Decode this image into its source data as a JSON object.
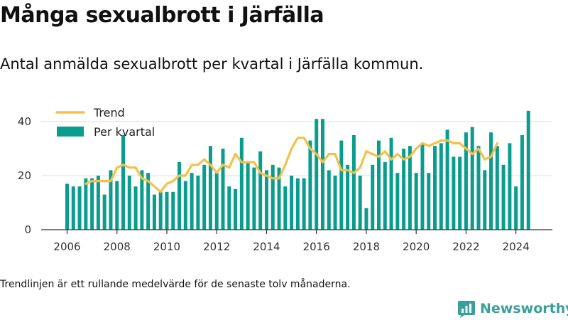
{
  "title": "Många sexualbrott i Järfälla",
  "subtitle": "Antal anmälda sexualbrott per kvartal i Järfälla kommun.",
  "footnote": "Trendlinjen är ett rullande medelvärde för de senaste tolv månaderna.",
  "brand": {
    "name": "Newsworthy",
    "color": "#3a9e9a"
  },
  "chart_data": {
    "type": "bar",
    "x_unit": "quarter",
    "start": "2006 Q1",
    "ylim": [
      0,
      45
    ],
    "yticks": [
      0,
      20,
      40
    ],
    "xticks": [
      "2006",
      "2008",
      "2010",
      "2012",
      "2014",
      "2016",
      "2018",
      "2020",
      "2022",
      "2024"
    ],
    "grid": true,
    "legend": "top-left",
    "series": [
      {
        "name": "Per kvartal",
        "chart": "bar",
        "color": "#0a9c8e",
        "values": [
          17,
          16,
          16,
          19,
          19,
          20,
          13,
          22,
          18,
          35,
          20,
          16,
          22,
          21,
          13,
          14,
          14,
          14,
          25,
          18,
          21,
          20,
          24,
          31,
          21,
          30,
          16,
          15,
          34,
          25,
          23,
          29,
          22,
          24,
          23,
          16,
          20,
          19,
          19,
          33,
          41,
          41,
          22,
          20,
          33,
          24,
          35,
          20,
          8,
          24,
          33,
          25,
          34,
          21,
          30,
          31,
          21,
          32,
          21,
          31,
          32,
          37,
          27,
          27,
          36,
          38,
          31,
          22,
          36,
          31,
          24,
          32,
          16,
          35,
          44
        ]
      },
      {
        "name": "Trend",
        "chart": "line",
        "color": "#f5c04a",
        "start": "2006 Q4",
        "values": [
          17,
          18,
          18,
          18,
          18,
          23,
          24,
          23,
          23,
          19,
          18,
          16,
          14,
          17,
          18,
          20,
          20,
          24,
          24,
          26,
          24,
          21,
          24,
          23,
          28,
          25,
          25,
          25,
          21,
          20,
          19,
          19,
          24,
          30,
          34,
          34,
          30,
          28,
          25,
          28,
          28,
          22,
          22,
          21,
          23,
          29,
          28,
          27,
          29,
          26,
          28,
          26,
          27,
          30,
          32,
          31,
          32,
          33,
          33,
          32,
          32,
          30,
          28,
          30,
          26,
          27,
          32
        ]
      }
    ]
  }
}
